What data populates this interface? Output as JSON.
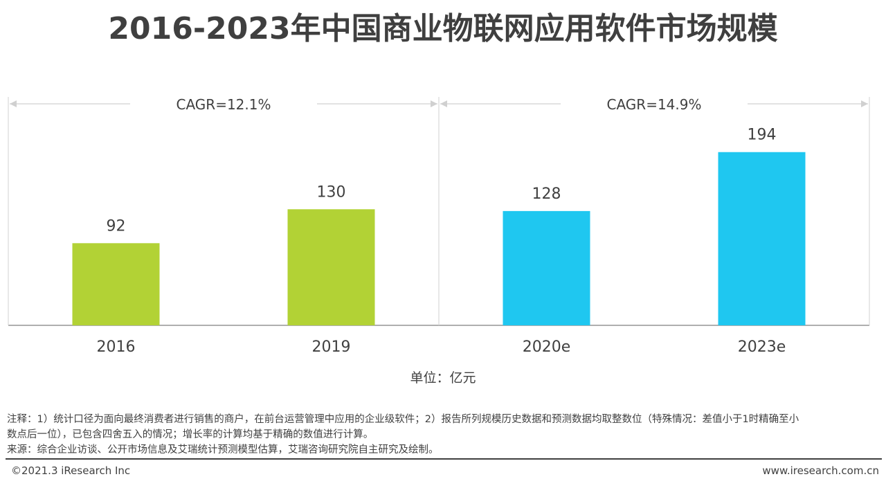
{
  "header": {
    "title": "2016-2023年中国商业物联网应用软件市场规模"
  },
  "chart_data": {
    "type": "bar",
    "categories": [
      "2016",
      "2019",
      "2020e",
      "2023e"
    ],
    "values": [
      92,
      130,
      128,
      194
    ],
    "colors": [
      "#b2d235",
      "#b2d235",
      "#1fc7f0",
      "#1fc7f0"
    ],
    "ylim": [
      0,
      220
    ],
    "grid": false,
    "cagr": [
      {
        "label": "CAGR=12.1%",
        "from": "2016",
        "to": "2019"
      },
      {
        "label": "CAGR=14.9%",
        "from": "2020e",
        "to": "2023e"
      }
    ]
  },
  "unit_label": "单位：亿元",
  "notes": {
    "line1": "注释：1）统计口径为面向最终消费者进行销售的商户，在前台运营管理中应用的企业级软件；2）报告所列规模历史数据和预测数据均取整数位（特殊情况：差值小于1时精确至小",
    "line2": "数点后一位），已包含四舍五入的情况；增长率的计算均基于精确的数值进行计算。",
    "source": "来源：综合企业访谈、公开市场信息及艾瑞统计预测模型估算，艾瑞咨询研究院自主研究及绘制。"
  },
  "footer": {
    "copyright": "©2021.3 iResearch Inc",
    "website": "www.iresearch.com.cn"
  }
}
